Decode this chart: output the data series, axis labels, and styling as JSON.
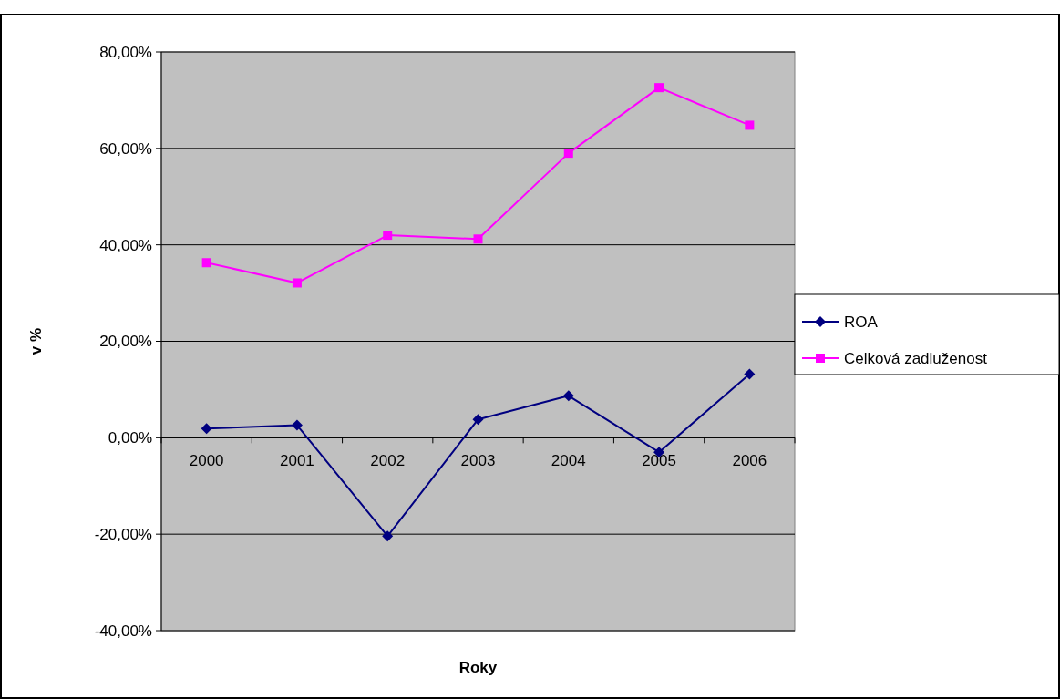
{
  "chart_data": {
    "type": "line",
    "xlabel": "Roky",
    "ylabel": "v %",
    "categories": [
      "2000",
      "2001",
      "2002",
      "2003",
      "2004",
      "2005",
      "2006"
    ],
    "series": [
      {
        "name": "ROA",
        "color": "#000080",
        "marker": "diamond",
        "values": [
          1.9,
          2.6,
          -20.4,
          3.8,
          8.7,
          -3.0,
          13.2
        ]
      },
      {
        "name": "Celková zadluženost",
        "color": "#ff00ff",
        "marker": "square",
        "values": [
          36.3,
          32.1,
          42.0,
          41.2,
          59.0,
          72.6,
          64.8
        ]
      }
    ],
    "ylim": [
      -40,
      80
    ],
    "yticks": [
      {
        "value": -40,
        "label": "-40,00%"
      },
      {
        "value": -20,
        "label": "-20,00%"
      },
      {
        "value": 0,
        "label": "0,00%"
      },
      {
        "value": 20,
        "label": "20,00%"
      },
      {
        "value": 40,
        "label": "40,00%"
      },
      {
        "value": 60,
        "label": "60,00%"
      },
      {
        "value": 80,
        "label": "80,00%"
      }
    ],
    "grid": "y",
    "legend": "right",
    "line_style": "solid"
  }
}
